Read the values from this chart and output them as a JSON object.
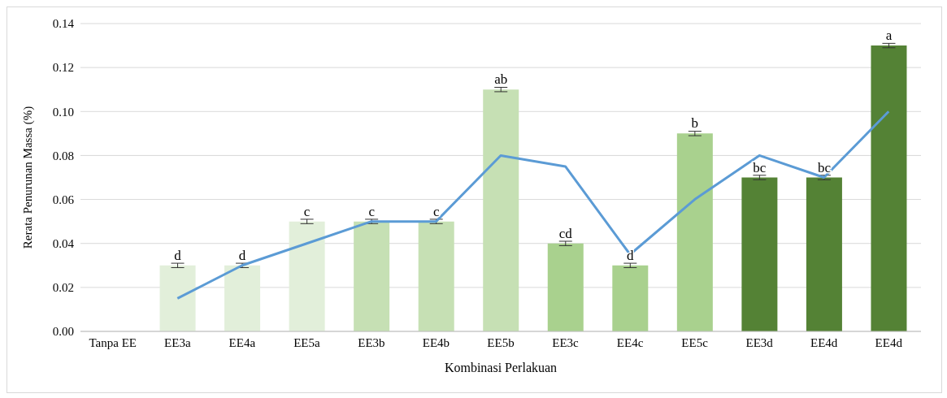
{
  "chart_data": {
    "type": "bar",
    "xlabel": "Kombinasi Perlakuan",
    "ylabel": "Rerata Penurunan Massa (%)",
    "categories": [
      "Tanpa EE",
      "EE3a",
      "EE4a",
      "EE5a",
      "EE3b",
      "EE4b",
      "EE5b",
      "EE3c",
      "EE4c",
      "EE5c",
      "EE3d",
      "EE4d",
      "EE4d"
    ],
    "series": [
      {
        "values": [
          0,
          0.03,
          0.03,
          0.05,
          0.05,
          0.05,
          0.11,
          0.04,
          0.03,
          0.09,
          0.07,
          0.07,
          0.13
        ],
        "colors": [
          "#e2efda",
          "#e2efda",
          "#e2efda",
          "#e2efda",
          "#c6e0b4",
          "#c6e0b4",
          "#c6e0b4",
          "#a9d18e",
          "#a9d18e",
          "#a9d18e",
          "#548235",
          "#548235",
          "#548235"
        ],
        "errors": [
          null,
          0.001,
          0.001,
          0.001,
          0.001,
          0.001,
          0.001,
          0.001,
          0.001,
          0.001,
          0.001,
          0.001,
          0.001
        ],
        "value_labels": [
          null,
          "d",
          "d",
          "c",
          "c",
          "c",
          "ab",
          "cd",
          "d",
          "b",
          "bc",
          "bc",
          "a"
        ]
      },
      {
        "type": "line",
        "color": "#5b9bd5",
        "values": [
          null,
          0.015,
          0.03,
          0.04,
          0.05,
          0.05,
          0.08,
          0.075,
          0.035,
          0.06,
          0.08,
          0.07,
          0.1
        ]
      }
    ],
    "ylim": [
      0,
      0.14
    ],
    "yticks": [
      {
        "value": 0,
        "label": "0.00"
      },
      {
        "value": 0.02,
        "label": "0.02"
      },
      {
        "value": 0.04,
        "label": "0.04"
      },
      {
        "value": 0.06,
        "label": "0.06"
      },
      {
        "value": 0.08,
        "label": "0.08"
      },
      {
        "value": 0.1,
        "label": "0.10"
      },
      {
        "value": 0.12,
        "label": "0.12"
      },
      {
        "value": 0.14,
        "label": "0.14"
      }
    ],
    "grid": "y",
    "legend": false,
    "marker": "none"
  }
}
